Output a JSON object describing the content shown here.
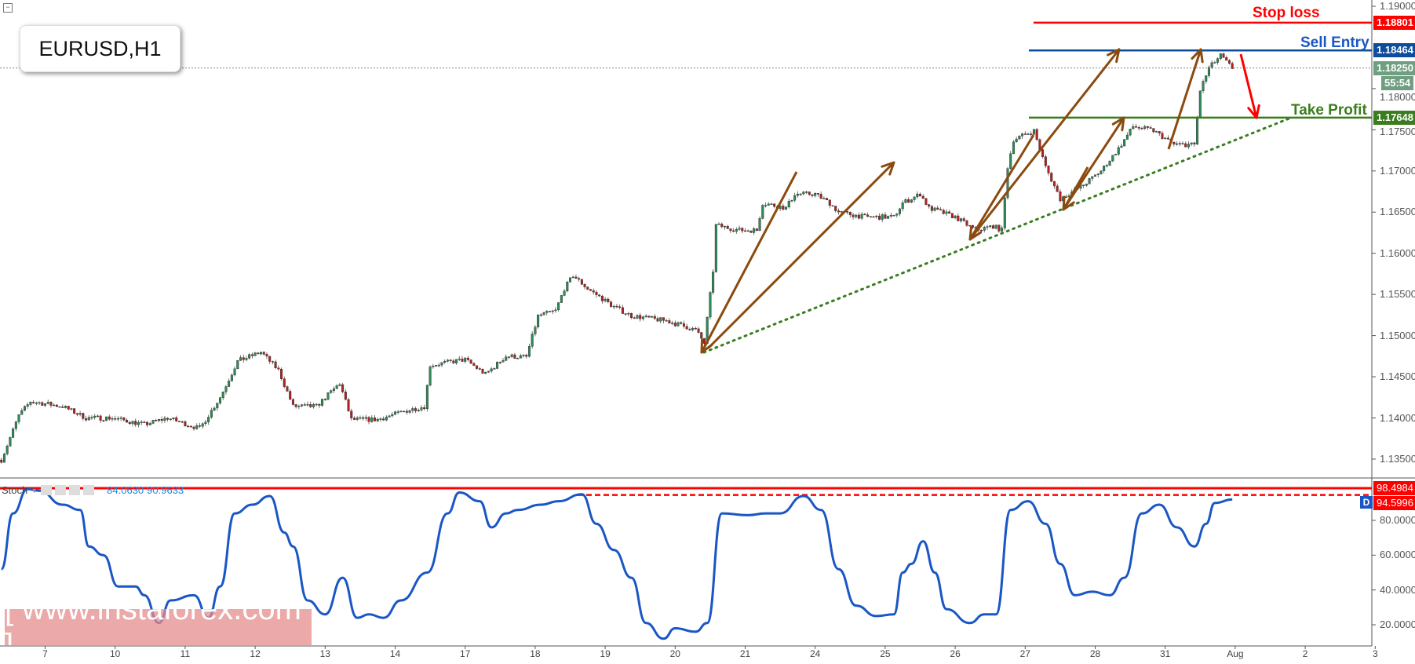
{
  "header": {
    "symbol_title": "EURUSD,H1",
    "collapse_icon": "minus-square-icon"
  },
  "annotations": {
    "stop_loss": "Stop loss",
    "sell_entry": "Sell Entry",
    "take_profit": "Take Profit"
  },
  "price_axis": {
    "labels": [
      "1.19000",
      "1.18000",
      "1.17500",
      "1.17000",
      "1.16500",
      "1.16000",
      "1.15500",
      "1.15000",
      "1.14500",
      "1.14000",
      "1.13500"
    ],
    "tags": {
      "stop_loss": "1.18801",
      "sell_entry": "1.18464",
      "current": "1.18250",
      "countdown": "55:54",
      "take_profit": "1.17648"
    }
  },
  "stoch": {
    "name": "Stoch",
    "k_value": "84.0630",
    "d_value": "90.9633",
    "axis_labels": [
      "80.0000",
      "60.0000",
      "40.0000",
      "20.0000"
    ],
    "tags": {
      "upper": "98.4984",
      "lower": "94.5996"
    },
    "badge": "D"
  },
  "x_axis": {
    "labels": [
      "7",
      "10",
      "11",
      "12",
      "13",
      "14",
      "17",
      "18",
      "19",
      "20",
      "21",
      "24",
      "25",
      "26",
      "27",
      "28",
      "31",
      "Aug",
      "2",
      "3"
    ]
  },
  "watermark": "[ www.instaforex.com ]",
  "colors": {
    "stop_loss": "#ff0000",
    "sell_entry": "#0d4d9c",
    "take_profit": "#3a7d1e",
    "current": "#6f9f80",
    "up_candle": "#2e8b57",
    "down_candle": "#b22222",
    "arrows": "#8b4a0f",
    "stoch_line": "#1a56c4"
  },
  "chart_data": [
    {
      "type": "candlestick",
      "title": "EURUSD,H1",
      "ylim": [
        1.133,
        1.1905
      ],
      "levels": {
        "stop_loss": 1.18801,
        "sell_entry": 1.18464,
        "current": 1.1825,
        "take_profit": 1.17648
      },
      "close_path": [
        [
          "Jul 6 09",
          1.1349
        ],
        [
          "Jul 6 15",
          1.1403
        ],
        [
          "Jul 6 19",
          1.142
        ],
        [
          "Jul 7 06",
          1.1414
        ],
        [
          "Jul 7 14",
          1.14
        ],
        [
          "Jul 7 23",
          1.14
        ],
        [
          "Jul 10 10",
          1.1392
        ],
        [
          "Jul 10 18",
          1.14
        ],
        [
          "Jul 11 05",
          1.1387
        ],
        [
          "Jul 11 12",
          1.1425
        ],
        [
          "Jul 11 18",
          1.1469
        ],
        [
          "Jul 12 02",
          1.148
        ],
        [
          "Jul 12 08",
          1.1458
        ],
        [
          "Jul 12 13",
          1.1414
        ],
        [
          "Jul 12 21",
          1.1414
        ],
        [
          "Jul 13 05",
          1.1442
        ],
        [
          "Jul 13 09",
          1.1398
        ],
        [
          "Jul 13 18",
          1.1398
        ],
        [
          "Jul 14 04",
          1.1409
        ],
        [
          "Jul 14 10",
          1.1414
        ],
        [
          "Jul 14 12",
          1.1464
        ],
        [
          "Jul 17 00",
          1.1471
        ],
        [
          "Jul 17 07",
          1.1453
        ],
        [
          "Jul 17 14",
          1.1475
        ],
        [
          "Jul 17 21",
          1.1474
        ],
        [
          "Jul 18 01",
          1.1524
        ],
        [
          "Jul 18 07",
          1.153
        ],
        [
          "Jul 18 10",
          1.1557
        ],
        [
          "Jul 18 13",
          1.1573
        ],
        [
          "Jul 18 18",
          1.1557
        ],
        [
          "Jul 19 03",
          1.1535
        ],
        [
          "Jul 19 09",
          1.1524
        ],
        [
          "Jul 19 21",
          1.1518
        ],
        [
          "Jul 20 07",
          1.1507
        ],
        [
          "Jul 20 10",
          1.1491
        ],
        [
          "Jul 20 13",
          1.1579
        ],
        [
          "Jul 20 14",
          1.1634
        ],
        [
          "Jul 20 22",
          1.1628
        ],
        [
          "Jul 21 04",
          1.1628
        ],
        [
          "Jul 21 06",
          1.1661
        ],
        [
          "Jul 21 14",
          1.1655
        ],
        [
          "Jul 21 17",
          1.1672
        ],
        [
          "Jul 24 00",
          1.1672
        ],
        [
          "Jul 24 05",
          1.1661
        ],
        [
          "Jul 24 08",
          1.165
        ],
        [
          "Jul 24 17",
          1.1644
        ],
        [
          "Jul 25 03",
          1.1644
        ],
        [
          "Jul 25 06",
          1.1661
        ],
        [
          "Jul 25 12",
          1.1672
        ],
        [
          "Jul 25 15",
          1.1655
        ],
        [
          "Jul 26 00",
          1.1644
        ],
        [
          "Jul 26 07",
          1.1628
        ],
        [
          "Jul 26 13",
          1.1633
        ],
        [
          "Jul 26 16",
          1.1628
        ],
        [
          "Jul 26 18",
          1.1705
        ],
        [
          "Jul 26 20",
          1.1738
        ],
        [
          "Jul 27 03",
          1.1749
        ],
        [
          "Jul 27 07",
          1.1705
        ],
        [
          "Jul 27 12",
          1.1666
        ],
        [
          "Jul 27 20",
          1.1683
        ],
        [
          "Jul 28 02",
          1.17
        ],
        [
          "Jul 28 08",
          1.1727
        ],
        [
          "Jul 28 13",
          1.1754
        ],
        [
          "Jul 28 20",
          1.1749
        ],
        [
          "Jul 31 03",
          1.1732
        ],
        [
          "Jul 31 10",
          1.1732
        ],
        [
          "Jul 31 12",
          1.1798
        ],
        [
          "Jul 31 15",
          1.1825
        ],
        [
          "Jul 31 19",
          1.184
        ],
        [
          "Jul 31 21",
          1.1832
        ],
        [
          "Jul 31 23",
          1.1825
        ]
      ]
    },
    {
      "type": "line",
      "title": "Stoch",
      "ylim": [
        0,
        100
      ],
      "levels": {
        "upper": 98.4984,
        "lower": 94.5996
      },
      "points": [
        [
          "Jul 6 09",
          52
        ],
        [
          "Jul 6 13",
          84
        ],
        [
          "Jul 6 18",
          98
        ],
        [
          "Jul 6 22",
          97
        ],
        [
          "Jul 7 06",
          89
        ],
        [
          "Jul 7 12",
          86
        ],
        [
          "Jul 7 15",
          65
        ],
        [
          "Jul 7 20",
          60
        ],
        [
          "Jul 10 01",
          42
        ],
        [
          "Jul 10 07",
          42
        ],
        [
          "Jul 10 10",
          37
        ],
        [
          "Jul 10 15",
          21
        ],
        [
          "Jul 10 19",
          34
        ],
        [
          "Jul 11 03",
          37
        ],
        [
          "Jul 11 08",
          24
        ],
        [
          "Jul 11 12",
          42
        ],
        [
          "Jul 11 17",
          84
        ],
        [
          "Jul 11 23",
          89
        ],
        [
          "Jul 12 05",
          94
        ],
        [
          "Jul 12 10",
          73
        ],
        [
          "Jul 12 13",
          65
        ],
        [
          "Jul 12 18",
          34
        ],
        [
          "Jul 13 00",
          26
        ],
        [
          "Jul 13 06",
          47
        ],
        [
          "Jul 13 11",
          24
        ],
        [
          "Jul 13 15",
          26
        ],
        [
          "Jul 13 20",
          24
        ],
        [
          "Jul 14 02",
          34
        ],
        [
          "Jul 14 11",
          50
        ],
        [
          "Jul 14 18",
          84
        ],
        [
          "Jul 14 22",
          96
        ],
        [
          "Jul 17 05",
          91
        ],
        [
          "Jul 17 09",
          76
        ],
        [
          "Jul 17 14",
          84
        ],
        [
          "Jul 17 18",
          86
        ],
        [
          "Jul 18 02",
          89
        ],
        [
          "Jul 18 08",
          91
        ],
        [
          "Jul 18 16",
          95
        ],
        [
          "Jul 18 21",
          78
        ],
        [
          "Jul 19 03",
          63
        ],
        [
          "Jul 19 09",
          47
        ],
        [
          "Jul 19 14",
          21
        ],
        [
          "Jul 19 20",
          12
        ],
        [
          "Jul 20 00",
          18
        ],
        [
          "Jul 20 07",
          16
        ],
        [
          "Jul 20 11",
          21
        ],
        [
          "Jul 20 16",
          84
        ],
        [
          "Jul 21 01",
          83
        ],
        [
          "Jul 21 07",
          84
        ],
        [
          "Jul 21 12",
          84
        ],
        [
          "Jul 21 20",
          94
        ],
        [
          "Jul 24 02",
          86
        ],
        [
          "Jul 24 08",
          52
        ],
        [
          "Jul 24 14",
          31
        ],
        [
          "Jul 24 21",
          25
        ],
        [
          "Jul 25 03",
          26
        ],
        [
          "Jul 25 06",
          50
        ],
        [
          "Jul 25 09",
          55
        ],
        [
          "Jul 25 13",
          68
        ],
        [
          "Jul 25 17",
          50
        ],
        [
          "Jul 25 21",
          29
        ],
        [
          "Jul 26 05",
          21
        ],
        [
          "Jul 26 10",
          26
        ],
        [
          "Jul 26 14",
          26
        ],
        [
          "Jul 26 19",
          86
        ],
        [
          "Jul 27 01",
          91
        ],
        [
          "Jul 27 07",
          78
        ],
        [
          "Jul 27 12",
          55
        ],
        [
          "Jul 27 17",
          37
        ],
        [
          "Jul 27 23",
          39
        ],
        [
          "Jul 28 05",
          37
        ],
        [
          "Jul 28 10",
          47
        ],
        [
          "Jul 28 16",
          84
        ],
        [
          "Jul 28 22",
          89
        ],
        [
          "Jul 31 04",
          76
        ],
        [
          "Jul 31 10",
          65
        ],
        [
          "Jul 31 14",
          78
        ],
        [
          "Jul 31 17",
          90
        ],
        [
          "Jul 31 23",
          92
        ]
      ]
    }
  ]
}
